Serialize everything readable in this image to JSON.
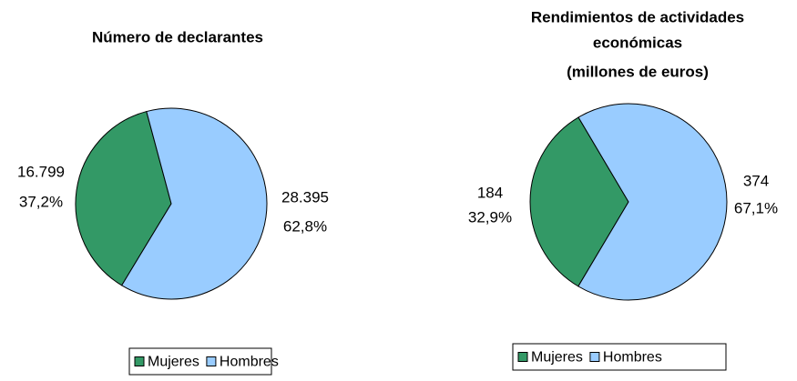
{
  "chart_data": [
    {
      "type": "pie",
      "title": [
        "Número de declarantes"
      ],
      "categories": [
        "Mujeres",
        "Hombres"
      ],
      "values": [
        16799,
        28395
      ],
      "value_labels": [
        "16.799",
        "28.395"
      ],
      "percentages": [
        37.2,
        62.8
      ],
      "percentage_labels": [
        "37,2%",
        "62,8%"
      ],
      "colors": [
        "#339966",
        "#99ccff"
      ],
      "legend": "bottom"
    },
    {
      "type": "pie",
      "title": [
        "Rendimientos de actividades",
        "económicas",
        "(millones de euros)"
      ],
      "categories": [
        "Mujeres",
        "Hombres"
      ],
      "values": [
        184,
        374
      ],
      "value_labels": [
        "184",
        "374"
      ],
      "percentages": [
        32.9,
        67.1
      ],
      "percentage_labels": [
        "32,9%",
        "67,1%"
      ],
      "colors": [
        "#339966",
        "#99ccff"
      ],
      "legend": "bottom"
    }
  ]
}
